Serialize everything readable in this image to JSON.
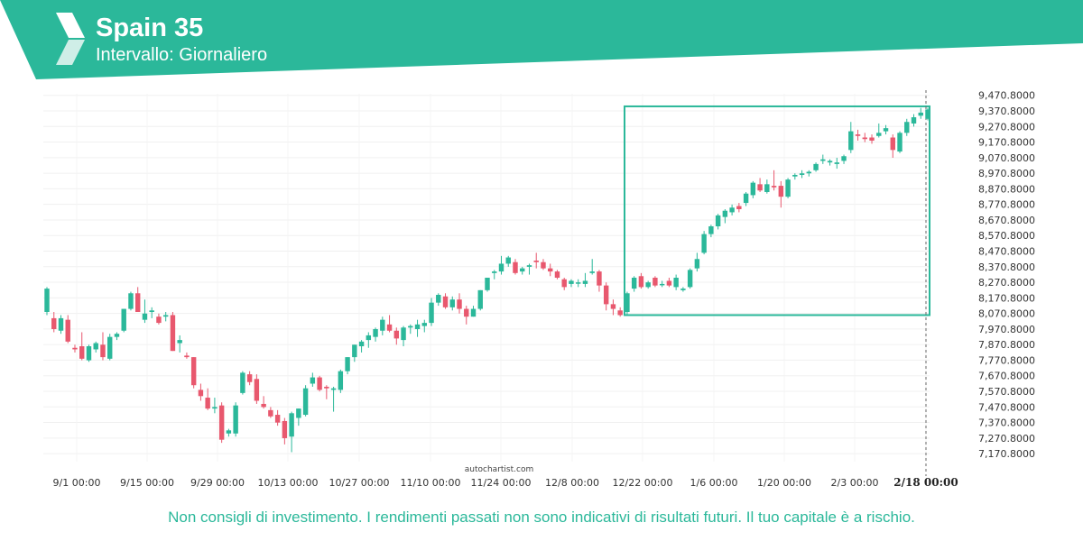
{
  "header": {
    "title": "Spain 35",
    "subtitle": "Intervallo: Giornaliero",
    "logo_icon": "autochartist-logo-icon"
  },
  "watermark": "autochartist.com",
  "disclaimer": "Non consigli di investimento. I rendimenti passati non sono indicativi di risultati futuri. Il tuo capitale è a rischio.",
  "colors": {
    "brand": "#2bb89a",
    "up": "#2bb89a",
    "down": "#e8586e",
    "pattern_box": "#2bb89a"
  },
  "chart_data": {
    "type": "candlestick",
    "title": "Spain 35",
    "interval": "Giornaliero",
    "y_ticks": [
      "9,470.8000",
      "9,370.8000",
      "9,270.8000",
      "9,170.8000",
      "9,070.8000",
      "8,970.8000",
      "8,870.8000",
      "8,770.8000",
      "8,670.8000",
      "8,570.8000",
      "8,470.8000",
      "8,370.8000",
      "8,270.8000",
      "8,170.8000",
      "8,070.8000",
      "7,970.8000",
      "7,870.8000",
      "7,770.8000",
      "7,670.8000",
      "7,570.8000",
      "7,470.8000",
      "7,370.8000",
      "7,270.8000",
      "7,170.8000"
    ],
    "ylim": [
      7130.8,
      9480.8
    ],
    "x_ticks": [
      "9/1 00:00",
      "9/15 00:00",
      "9/29 00:00",
      "10/13 00:00",
      "10/27 00:00",
      "11/10 00:00",
      "11/24 00:00",
      "12/8 00:00",
      "12/22 00:00",
      "1/6 00:00",
      "1/20 00:00",
      "2/3 00:00",
      "2/18 00:00"
    ],
    "highlighted_x_tick": "2/18 00:00",
    "candles": [
      {
        "o": 8080,
        "h": 8240,
        "l": 8060,
        "c": 8230
      },
      {
        "o": 8040,
        "h": 8080,
        "l": 7950,
        "c": 7970
      },
      {
        "o": 7960,
        "h": 8060,
        "l": 7940,
        "c": 8040
      },
      {
        "o": 8030,
        "h": 8060,
        "l": 7880,
        "c": 7890
      },
      {
        "o": 7850,
        "h": 7870,
        "l": 7820,
        "c": 7840
      },
      {
        "o": 7860,
        "h": 7950,
        "l": 7770,
        "c": 7780
      },
      {
        "o": 7770,
        "h": 7870,
        "l": 7760,
        "c": 7860
      },
      {
        "o": 7840,
        "h": 7890,
        "l": 7820,
        "c": 7880
      },
      {
        "o": 7870,
        "h": 7950,
        "l": 7770,
        "c": 7790
      },
      {
        "o": 7780,
        "h": 7940,
        "l": 7770,
        "c": 7920
      },
      {
        "o": 7920,
        "h": 7950,
        "l": 7900,
        "c": 7940
      },
      {
        "o": 7960,
        "h": 8100,
        "l": 7950,
        "c": 8100
      },
      {
        "o": 8100,
        "h": 8210,
        "l": 8090,
        "c": 8200
      },
      {
        "o": 8200,
        "h": 8240,
        "l": 8080,
        "c": 8080
      },
      {
        "o": 8030,
        "h": 8160,
        "l": 8010,
        "c": 8070
      },
      {
        "o": 8080,
        "h": 8110,
        "l": 8040,
        "c": 8090
      },
      {
        "o": 8050,
        "h": 8070,
        "l": 8000,
        "c": 8010
      },
      {
        "o": 8050,
        "h": 8080,
        "l": 8020,
        "c": 8060
      },
      {
        "o": 8060,
        "h": 8080,
        "l": 7830,
        "c": 7830
      },
      {
        "o": 7880,
        "h": 7930,
        "l": 7820,
        "c": 7900
      },
      {
        "o": 7800,
        "h": 7820,
        "l": 7780,
        "c": 7790
      },
      {
        "o": 7790,
        "h": 7790,
        "l": 7590,
        "c": 7610
      },
      {
        "o": 7580,
        "h": 7620,
        "l": 7510,
        "c": 7540
      },
      {
        "o": 7530,
        "h": 7590,
        "l": 7450,
        "c": 7460
      },
      {
        "o": 7460,
        "h": 7530,
        "l": 7430,
        "c": 7470
      },
      {
        "o": 7480,
        "h": 7500,
        "l": 7240,
        "c": 7260
      },
      {
        "o": 7300,
        "h": 7330,
        "l": 7280,
        "c": 7320
      },
      {
        "o": 7300,
        "h": 7500,
        "l": 7280,
        "c": 7480
      },
      {
        "o": 7560,
        "h": 7700,
        "l": 7550,
        "c": 7690
      },
      {
        "o": 7680,
        "h": 7700,
        "l": 7610,
        "c": 7630
      },
      {
        "o": 7650,
        "h": 7680,
        "l": 7490,
        "c": 7510
      },
      {
        "o": 7490,
        "h": 7540,
        "l": 7460,
        "c": 7470
      },
      {
        "o": 7450,
        "h": 7470,
        "l": 7400,
        "c": 7410
      },
      {
        "o": 7420,
        "h": 7450,
        "l": 7350,
        "c": 7370
      },
      {
        "o": 7380,
        "h": 7400,
        "l": 7230,
        "c": 7270
      },
      {
        "o": 7280,
        "h": 7440,
        "l": 7180,
        "c": 7430
      },
      {
        "o": 7400,
        "h": 7460,
        "l": 7350,
        "c": 7460
      },
      {
        "o": 7420,
        "h": 7610,
        "l": 7410,
        "c": 7590
      },
      {
        "o": 7620,
        "h": 7690,
        "l": 7600,
        "c": 7660
      },
      {
        "o": 7660,
        "h": 7670,
        "l": 7570,
        "c": 7580
      },
      {
        "o": 7600,
        "h": 7610,
        "l": 7520,
        "c": 7590
      },
      {
        "o": 7580,
        "h": 7600,
        "l": 7440,
        "c": 7590
      },
      {
        "o": 7580,
        "h": 7710,
        "l": 7560,
        "c": 7700
      },
      {
        "o": 7700,
        "h": 7790,
        "l": 7680,
        "c": 7790
      },
      {
        "o": 7790,
        "h": 7870,
        "l": 7760,
        "c": 7870
      },
      {
        "o": 7860,
        "h": 7900,
        "l": 7820,
        "c": 7890
      },
      {
        "o": 7900,
        "h": 7950,
        "l": 7850,
        "c": 7930
      },
      {
        "o": 7920,
        "h": 7980,
        "l": 7890,
        "c": 7970
      },
      {
        "o": 7960,
        "h": 8050,
        "l": 7930,
        "c": 8030
      },
      {
        "o": 8000,
        "h": 8060,
        "l": 7950,
        "c": 7960
      },
      {
        "o": 7960,
        "h": 7980,
        "l": 7870,
        "c": 7910
      },
      {
        "o": 7900,
        "h": 7990,
        "l": 7860,
        "c": 7980
      },
      {
        "o": 7980,
        "h": 8000,
        "l": 7940,
        "c": 7990
      },
      {
        "o": 7970,
        "h": 8030,
        "l": 7920,
        "c": 8000
      },
      {
        "o": 7990,
        "h": 8030,
        "l": 7950,
        "c": 8010
      },
      {
        "o": 8010,
        "h": 8170,
        "l": 7990,
        "c": 8140
      },
      {
        "o": 8140,
        "h": 8200,
        "l": 8120,
        "c": 8190
      },
      {
        "o": 8180,
        "h": 8200,
        "l": 8100,
        "c": 8110
      },
      {
        "o": 8110,
        "h": 8180,
        "l": 8090,
        "c": 8160
      },
      {
        "o": 8160,
        "h": 8200,
        "l": 8070,
        "c": 8100
      },
      {
        "o": 8100,
        "h": 8120,
        "l": 8000,
        "c": 8050
      },
      {
        "o": 8050,
        "h": 8120,
        "l": 8050,
        "c": 8100
      },
      {
        "o": 8100,
        "h": 8220,
        "l": 8090,
        "c": 8220
      },
      {
        "o": 8220,
        "h": 8300,
        "l": 8210,
        "c": 8300
      },
      {
        "o": 8330,
        "h": 8350,
        "l": 8290,
        "c": 8340
      },
      {
        "o": 8340,
        "h": 8440,
        "l": 8320,
        "c": 8390
      },
      {
        "o": 8390,
        "h": 8440,
        "l": 8370,
        "c": 8430
      },
      {
        "o": 8400,
        "h": 8420,
        "l": 8320,
        "c": 8330
      },
      {
        "o": 8340,
        "h": 8370,
        "l": 8320,
        "c": 8360
      },
      {
        "o": 8370,
        "h": 8390,
        "l": 8320,
        "c": 8380
      },
      {
        "o": 8410,
        "h": 8460,
        "l": 8360,
        "c": 8400
      },
      {
        "o": 8400,
        "h": 8420,
        "l": 8350,
        "c": 8360
      },
      {
        "o": 8360,
        "h": 8390,
        "l": 8310,
        "c": 8340
      },
      {
        "o": 8340,
        "h": 8350,
        "l": 8290,
        "c": 8300
      },
      {
        "o": 8290,
        "h": 8300,
        "l": 8220,
        "c": 8240
      },
      {
        "o": 8260,
        "h": 8290,
        "l": 8240,
        "c": 8280
      },
      {
        "o": 8270,
        "h": 8290,
        "l": 8240,
        "c": 8270
      },
      {
        "o": 8260,
        "h": 8330,
        "l": 8240,
        "c": 8280
      },
      {
        "o": 8330,
        "h": 8420,
        "l": 8320,
        "c": 8340
      },
      {
        "o": 8340,
        "h": 8350,
        "l": 8210,
        "c": 8250
      },
      {
        "o": 8250,
        "h": 8270,
        "l": 8090,
        "c": 8130
      },
      {
        "o": 8130,
        "h": 8160,
        "l": 8060,
        "c": 8100
      },
      {
        "o": 8090,
        "h": 8110,
        "l": 8050,
        "c": 8060
      },
      {
        "o": 8080,
        "h": 8210,
        "l": 8060,
        "c": 8200
      },
      {
        "o": 8230,
        "h": 8310,
        "l": 8210,
        "c": 8300
      },
      {
        "o": 8310,
        "h": 8330,
        "l": 8230,
        "c": 8240
      },
      {
        "o": 8240,
        "h": 8280,
        "l": 8230,
        "c": 8270
      },
      {
        "o": 8300,
        "h": 8310,
        "l": 8240,
        "c": 8250
      },
      {
        "o": 8260,
        "h": 8280,
        "l": 8240,
        "c": 8260
      },
      {
        "o": 8280,
        "h": 8300,
        "l": 8240,
        "c": 8250
      },
      {
        "o": 8240,
        "h": 8320,
        "l": 8220,
        "c": 8300
      },
      {
        "o": 8220,
        "h": 8240,
        "l": 8210,
        "c": 8230
      },
      {
        "o": 8240,
        "h": 8360,
        "l": 8230,
        "c": 8350
      },
      {
        "o": 8360,
        "h": 8460,
        "l": 8340,
        "c": 8420
      },
      {
        "o": 8460,
        "h": 8600,
        "l": 8450,
        "c": 8580
      },
      {
        "o": 8580,
        "h": 8640,
        "l": 8560,
        "c": 8630
      },
      {
        "o": 8630,
        "h": 8710,
        "l": 8610,
        "c": 8700
      },
      {
        "o": 8690,
        "h": 8740,
        "l": 8650,
        "c": 8730
      },
      {
        "o": 8720,
        "h": 8770,
        "l": 8700,
        "c": 8750
      },
      {
        "o": 8760,
        "h": 8780,
        "l": 8720,
        "c": 8740
      },
      {
        "o": 8780,
        "h": 8850,
        "l": 8760,
        "c": 8840
      },
      {
        "o": 8830,
        "h": 8920,
        "l": 8810,
        "c": 8910
      },
      {
        "o": 8900,
        "h": 8940,
        "l": 8850,
        "c": 8860
      },
      {
        "o": 8850,
        "h": 8930,
        "l": 8840,
        "c": 8900
      },
      {
        "o": 8890,
        "h": 8990,
        "l": 8860,
        "c": 8880
      },
      {
        "o": 8890,
        "h": 8920,
        "l": 8750,
        "c": 8820
      },
      {
        "o": 8820,
        "h": 8940,
        "l": 8810,
        "c": 8930
      },
      {
        "o": 8950,
        "h": 8970,
        "l": 8930,
        "c": 8960
      },
      {
        "o": 8960,
        "h": 8990,
        "l": 8940,
        "c": 8970
      },
      {
        "o": 8970,
        "h": 8990,
        "l": 8950,
        "c": 8980
      },
      {
        "o": 8990,
        "h": 9040,
        "l": 8980,
        "c": 9030
      },
      {
        "o": 9050,
        "h": 9090,
        "l": 9030,
        "c": 9060
      },
      {
        "o": 9040,
        "h": 9060,
        "l": 9020,
        "c": 9050
      },
      {
        "o": 9030,
        "h": 9070,
        "l": 9000,
        "c": 9040
      },
      {
        "o": 9050,
        "h": 9090,
        "l": 9030,
        "c": 9080
      },
      {
        "o": 9120,
        "h": 9300,
        "l": 9100,
        "c": 9240
      },
      {
        "o": 9220,
        "h": 9250,
        "l": 9180,
        "c": 9210
      },
      {
        "o": 9200,
        "h": 9230,
        "l": 9170,
        "c": 9190
      },
      {
        "o": 9200,
        "h": 9220,
        "l": 9160,
        "c": 9180
      },
      {
        "o": 9210,
        "h": 9290,
        "l": 9200,
        "c": 9230
      },
      {
        "o": 9240,
        "h": 9280,
        "l": 9220,
        "c": 9260
      },
      {
        "o": 9200,
        "h": 9220,
        "l": 9070,
        "c": 9120
      },
      {
        "o": 9110,
        "h": 9240,
        "l": 9100,
        "c": 9230
      },
      {
        "o": 9230,
        "h": 9320,
        "l": 9210,
        "c": 9300
      },
      {
        "o": 9290,
        "h": 9350,
        "l": 9270,
        "c": 9330
      },
      {
        "o": 9340,
        "h": 9390,
        "l": 9320,
        "c": 9360
      },
      {
        "o": 9320,
        "h": 9390,
        "l": 9310,
        "c": 9380
      }
    ],
    "pattern_box": {
      "x_from": "12/22 00:00",
      "x_to": "2/18 00:00",
      "y_low": 8060,
      "y_high": 9400
    }
  }
}
